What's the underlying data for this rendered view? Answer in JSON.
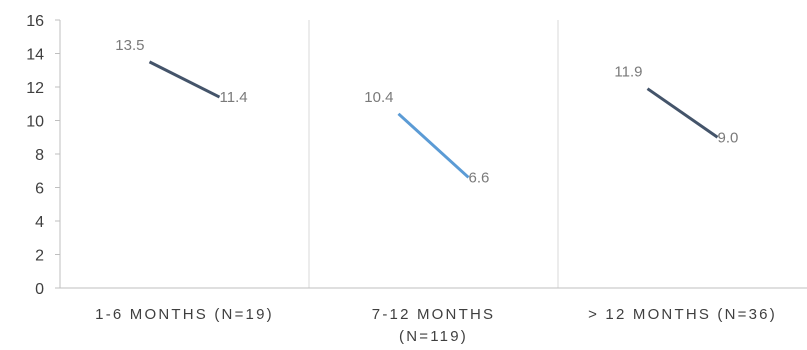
{
  "chart_data": {
    "type": "line",
    "ylim": [
      0,
      16
    ],
    "yticks": [
      0,
      2,
      4,
      6,
      8,
      10,
      12,
      14,
      16
    ],
    "grid": {
      "x": true,
      "y": false
    },
    "legend": "none",
    "categories": [
      {
        "label_lines": [
          "1-6 MONTHS (N=19)"
        ]
      },
      {
        "label_lines": [
          "7-12 MONTHS",
          "(N=119)"
        ]
      },
      {
        "label_lines": [
          "> 12 MONTHS (N=36)"
        ]
      }
    ],
    "segments": [
      {
        "start": 13.5,
        "end": 11.4,
        "start_label": "13.5",
        "end_label": "11.4",
        "color": "#44546a"
      },
      {
        "start": 10.4,
        "end": 6.6,
        "start_label": "10.4",
        "end_label": "6.6",
        "color": "#5b9bd5"
      },
      {
        "start": 11.9,
        "end": 9.0,
        "start_label": "11.9",
        "end_label": "9.0",
        "color": "#44546a"
      }
    ],
    "colors": {
      "axis": "#bfbfbf",
      "grid": "#d9d9d9",
      "text": "#3f3f3f",
      "data_label": "#7a7a7a"
    }
  }
}
